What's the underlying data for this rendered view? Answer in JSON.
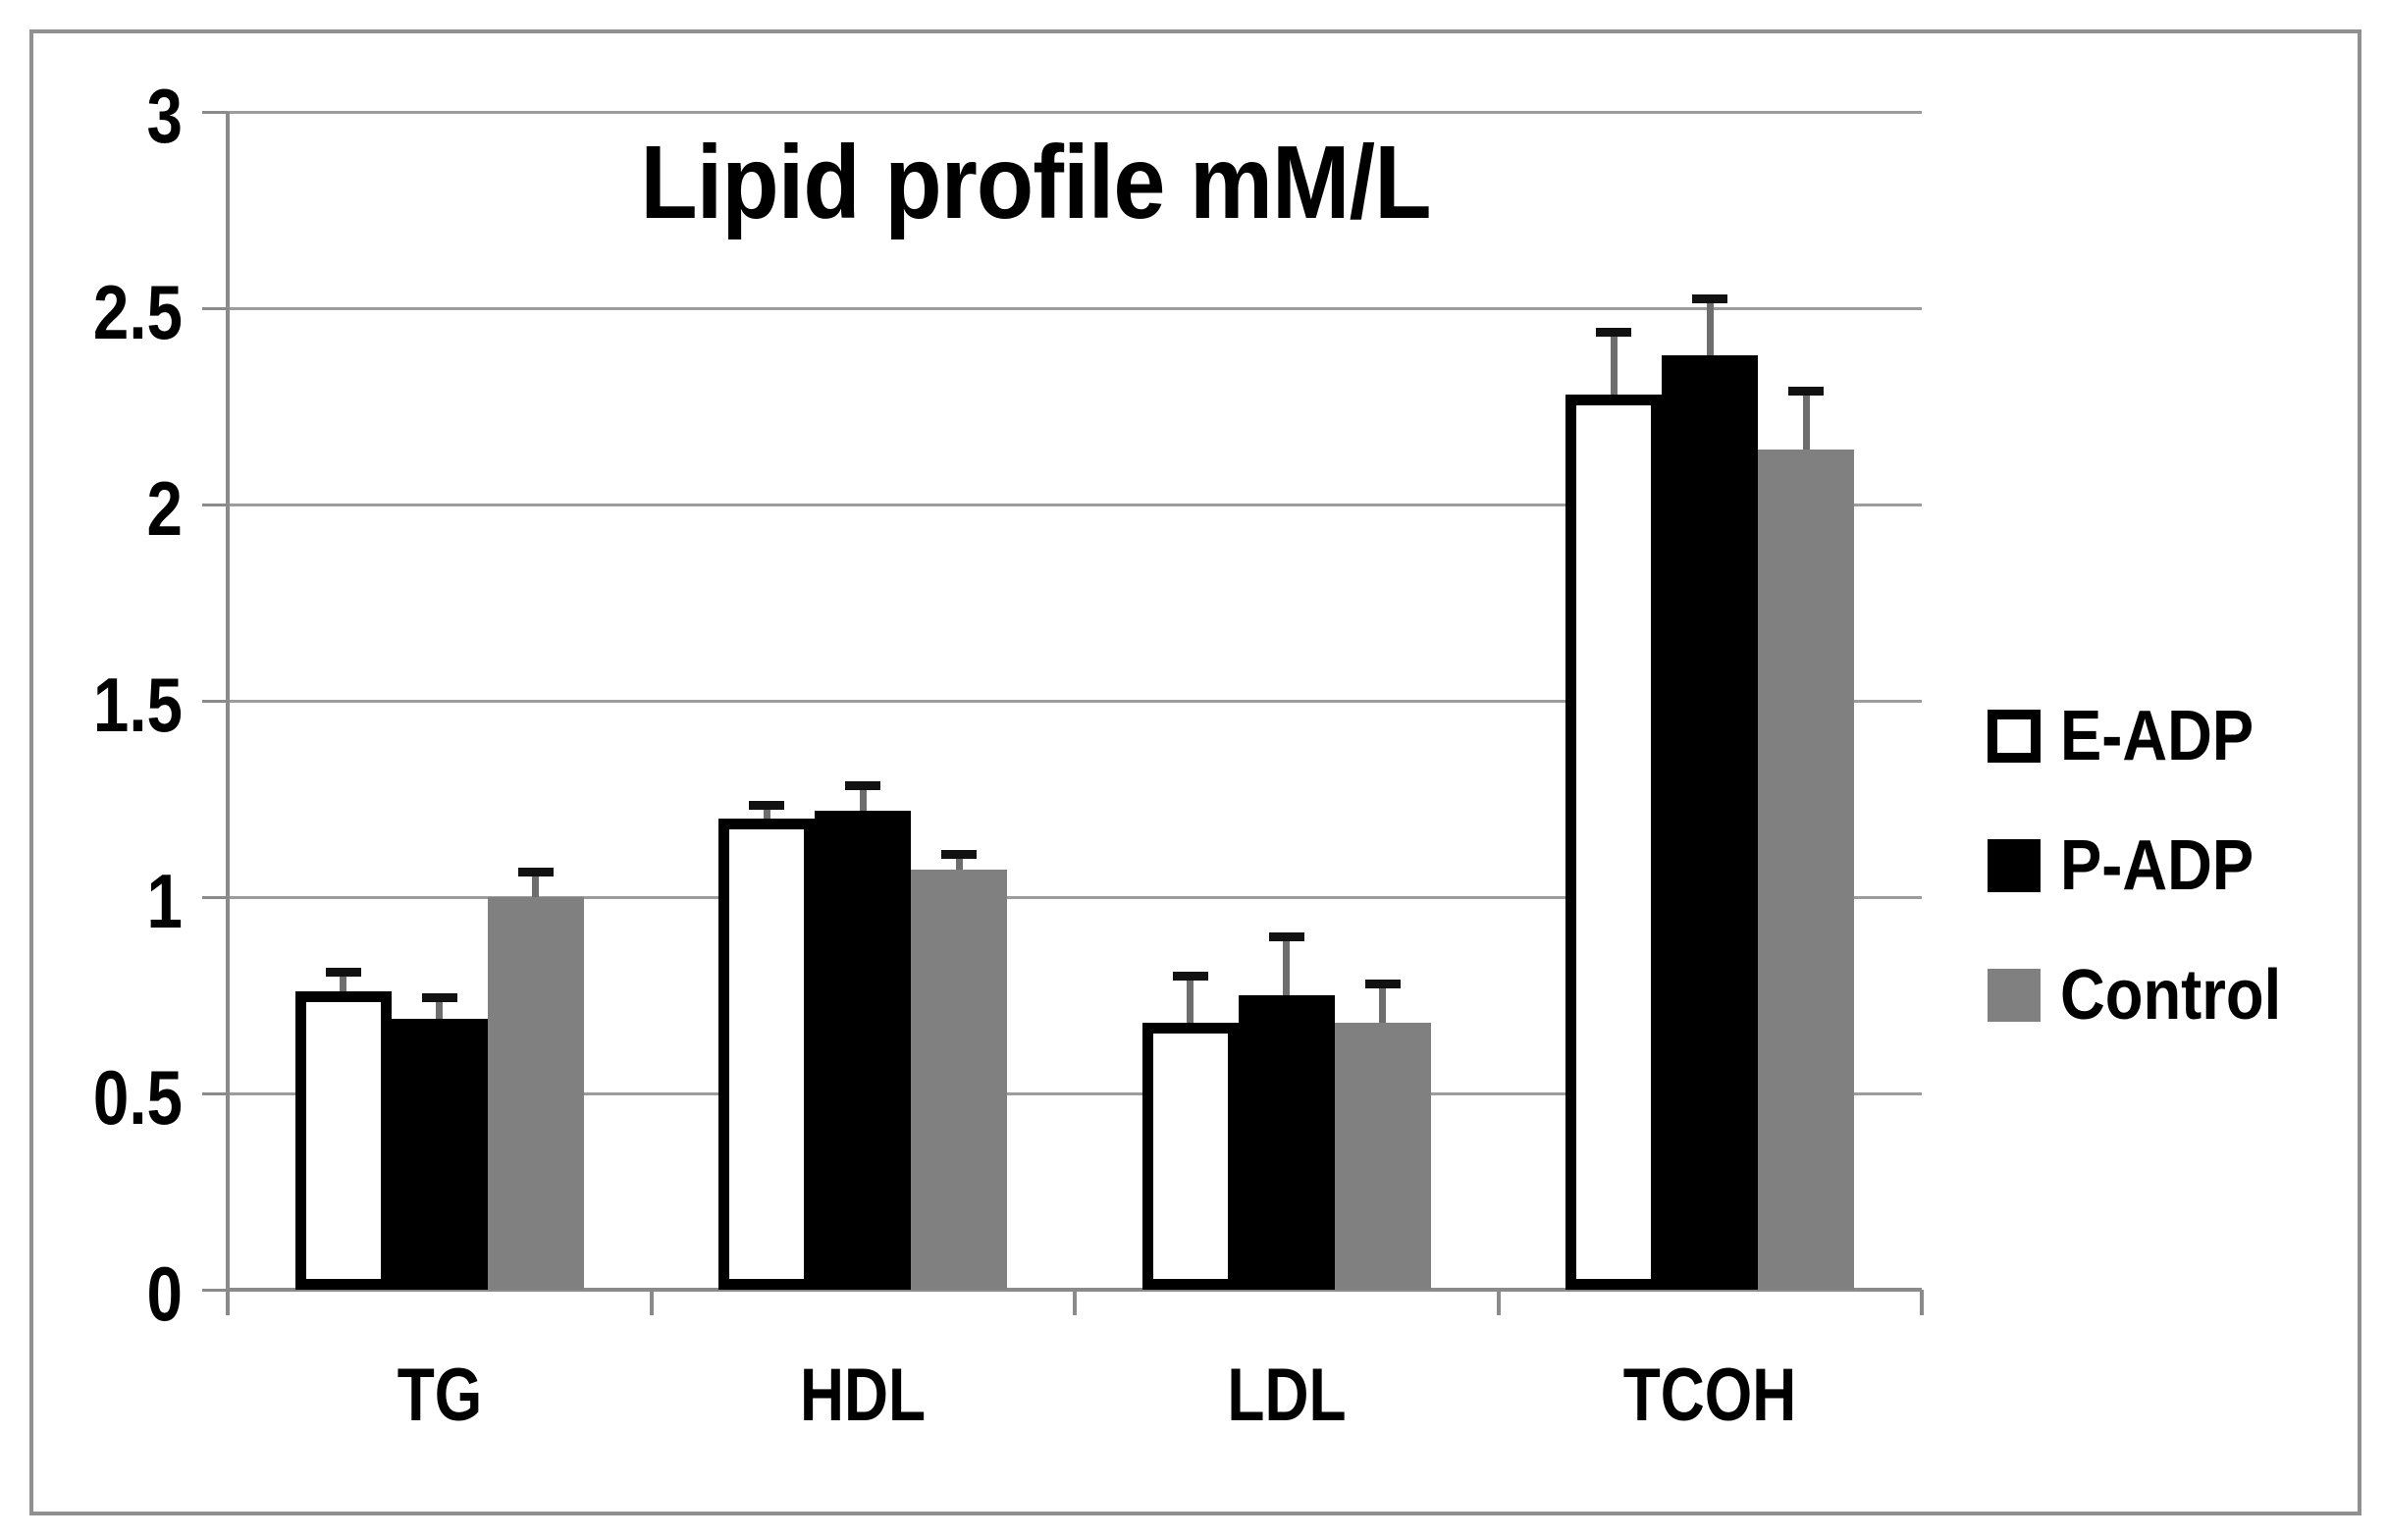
{
  "chart_data": {
    "type": "bar",
    "title": "Lipid profile mM/L",
    "categories": [
      "TG",
      "HDL",
      "LDL",
      "TCOH"
    ],
    "series": [
      {
        "name": "E-ADP",
        "fill": "#ffffff",
        "edge": "#000000",
        "values": [
          0.76,
          1.2,
          0.68,
          2.28
        ],
        "errors_plus": [
          0.04,
          0.025,
          0.11,
          0.15
        ]
      },
      {
        "name": "P-ADP",
        "fill": "#000000",
        "edge": "#000000",
        "values": [
          0.69,
          1.22,
          0.75,
          2.38
        ],
        "errors_plus": [
          0.045,
          0.055,
          0.14,
          0.135
        ]
      },
      {
        "name": "Control",
        "fill": "#808080",
        "edge": "#808080",
        "values": [
          1.0,
          1.07,
          0.68,
          2.14
        ],
        "errors_plus": [
          0.055,
          0.03,
          0.09,
          0.14
        ]
      }
    ],
    "ylim": [
      0,
      3
    ],
    "yticks": [
      3,
      2.5,
      2,
      1.5,
      1,
      0.5,
      0
    ],
    "ytick_labels": [
      "3",
      "2.5",
      "2",
      "1.5",
      "1",
      "0.5",
      "0"
    ],
    "xlabel": "",
    "ylabel": "",
    "grid": true,
    "legend_position": "right-middle",
    "error_bars": "plus-direction only, capped"
  },
  "colors": {
    "background": "#ffffff",
    "frame_border": "#909090",
    "gridline": "#9c9c9c",
    "axis": "#8a8a8a",
    "error_stem": "#6e6e6e",
    "error_cap": "#111111",
    "text": "#000000"
  }
}
